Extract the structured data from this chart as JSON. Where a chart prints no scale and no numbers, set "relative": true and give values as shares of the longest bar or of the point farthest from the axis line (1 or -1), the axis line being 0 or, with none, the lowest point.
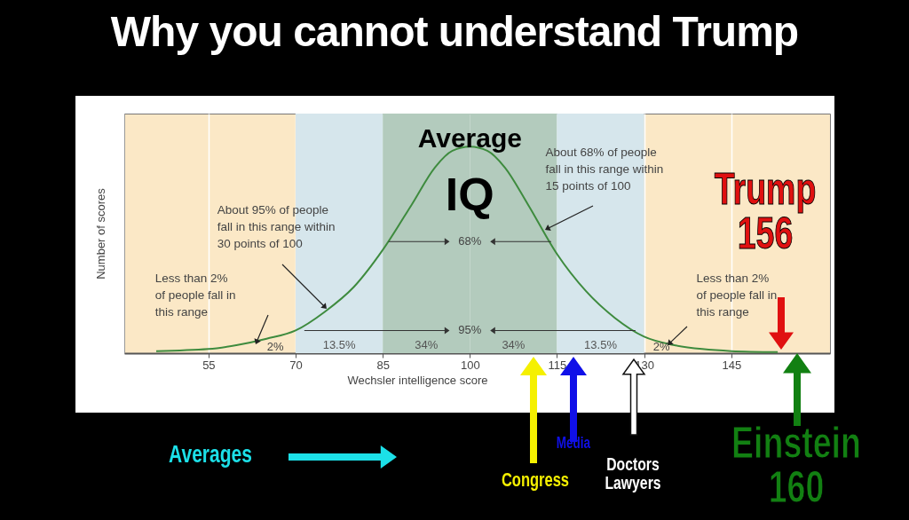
{
  "chart_data": {
    "type": "line",
    "title": "Why you cannot understand Trump",
    "xlabel": "Wechsler intelligence score",
    "ylabel": "Number of scores",
    "relative": true,
    "x": [
      46,
      55,
      60,
      65,
      70,
      75,
      80,
      85,
      90,
      94,
      97,
      100,
      103,
      106,
      110,
      115,
      120,
      125,
      130,
      135,
      140,
      145,
      153
    ],
    "series": [
      {
        "color": "#3e8b3e",
        "values": [
          0.01,
          0.02,
          0.04,
          0.07,
          0.11,
          0.2,
          0.32,
          0.5,
          0.72,
          0.9,
          0.98,
          1.0,
          0.98,
          0.9,
          0.72,
          0.48,
          0.3,
          0.17,
          0.08,
          0.04,
          0.02,
          0.01,
          0.005
        ]
      }
    ],
    "xlim": [
      40.5,
      162
    ],
    "xticks": [
      55,
      70,
      85,
      100,
      115,
      130,
      145
    ],
    "grid": "x",
    "bands": [
      {
        "axis": "x",
        "from": 70,
        "to": 85,
        "label": "13.5%",
        "color": "#d6e6ec"
      },
      {
        "axis": "x",
        "from": 85,
        "to": 100,
        "label": "34%",
        "color": "#b3cbbd"
      },
      {
        "axis": "x",
        "from": 100,
        "to": 115,
        "label": "34%",
        "color": "#b3cbbd"
      },
      {
        "axis": "x",
        "from": 115,
        "to": 130,
        "label": "13.5%",
        "color": "#d6e6ec"
      }
    ],
    "annotations": [
      "Average",
      "IQ",
      "About 68% of people\nfall in this range within\n15 points of 100",
      "About 95% of people\nfall in this range within\n30 points of 100",
      "Less than 2%\nof people fall in\nthis range",
      "Less than 2%\nof people fall in\nthis range",
      "68%",
      "95%",
      "2%",
      "2%",
      "Trump\n156",
      "Einstein\n160",
      "Congress",
      "Media",
      "Doctors\nLawyers",
      "Averages"
    ]
  }
}
